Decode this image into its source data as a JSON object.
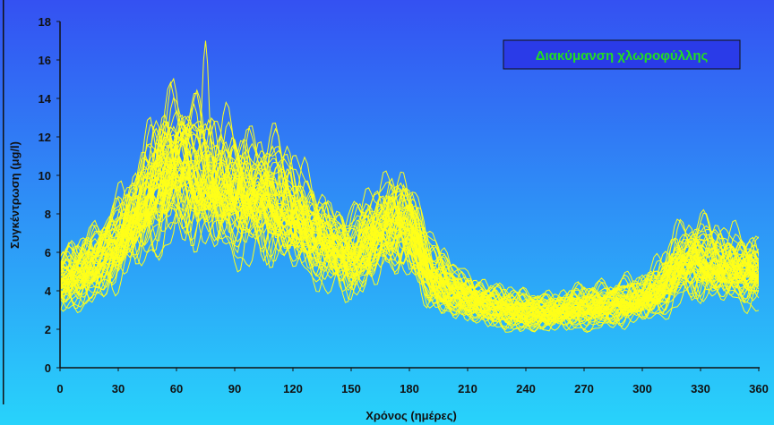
{
  "chart_data": {
    "type": "line",
    "title": "",
    "legend": {
      "label": "Διακύμανση χλωροφύλλης",
      "position": "top-right"
    },
    "xlabel": "Χρόνος (ημέρες)",
    "ylabel": "Συγκέντρωση (μg/l)",
    "xlim": [
      0,
      360
    ],
    "ylim": [
      0,
      18
    ],
    "xticks": [
      0,
      30,
      60,
      90,
      120,
      150,
      180,
      210,
      240,
      270,
      300,
      330,
      360
    ],
    "yticks": [
      0,
      2,
      4,
      6,
      8,
      10,
      12,
      14,
      16,
      18
    ],
    "grid": false,
    "series_count": 60,
    "series_mean": {
      "x": [
        0,
        10,
        20,
        30,
        40,
        50,
        60,
        70,
        80,
        90,
        100,
        110,
        120,
        130,
        140,
        150,
        160,
        170,
        180,
        190,
        200,
        210,
        220,
        230,
        240,
        250,
        260,
        270,
        280,
        290,
        300,
        310,
        320,
        330,
        340,
        350,
        360
      ],
      "values": [
        4.5,
        4.8,
        5.5,
        6.6,
        8.0,
        9.5,
        10.5,
        10.0,
        9.4,
        9.0,
        8.8,
        8.6,
        8.0,
        7.0,
        6.3,
        5.6,
        6.6,
        7.6,
        7.4,
        4.9,
        4.1,
        3.7,
        3.3,
        3.0,
        2.9,
        2.9,
        3.0,
        3.1,
        3.2,
        3.4,
        3.6,
        4.1,
        5.4,
        5.6,
        5.3,
        5.1,
        4.9
      ]
    },
    "series_peak_max": {
      "x": 75,
      "y": 16.8
    },
    "colors": {
      "series": "#ffff19",
      "legend_text": "#22dd22",
      "background_top": "#3552f2",
      "background_bottom": "#27d0fb"
    }
  }
}
